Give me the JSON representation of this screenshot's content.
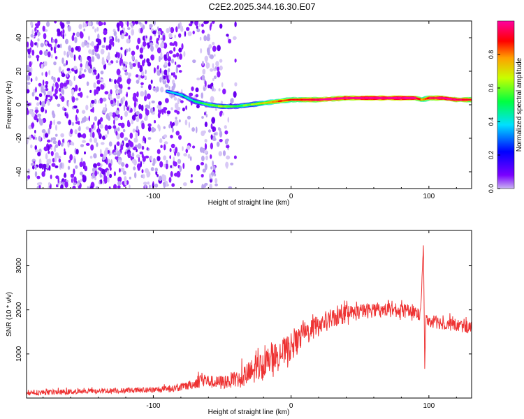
{
  "title": "C2E2.2025.344.16.30.E07",
  "colors": {
    "snr_line": "#ee3333",
    "background": "#ffffff",
    "axis": "#000000"
  },
  "chart_data": [
    {
      "type": "heatmap",
      "name": "spectrogram",
      "xlabel": "Height of straight line (km)",
      "ylabel": "Frequency (Hz)",
      "xlim": [
        -192,
        131
      ],
      "ylim": [
        -50,
        50
      ],
      "xticks": [
        -100,
        0,
        100
      ],
      "xtick_labels": [
        "-100",
        "0",
        "100"
      ],
      "yticks": [
        -40,
        -20,
        0,
        20,
        40
      ],
      "ytick_labels": [
        "-40",
        "-20",
        "0",
        "20",
        "40"
      ],
      "colorbar": {
        "label": "Normalized spectral amplitude",
        "range": [
          0,
          1
        ],
        "ticks": [
          0.0,
          0.2,
          0.4,
          0.6,
          0.8
        ],
        "tick_labels": [
          "0.0",
          "0.2",
          "0.4",
          "0.6",
          "0.8"
        ],
        "colormap": "rainbow (violet → blue → cyan → green → yellow → red → magenta)"
      },
      "features": {
        "noise_region_x": [
          -192,
          -40
        ],
        "noise_band_x": [
          -65,
          -55
        ],
        "signal_track": {
          "x": [
            -90,
            -80,
            -70,
            -60,
            -50,
            -40,
            -30,
            -20,
            -10,
            0,
            10,
            20,
            40,
            60,
            80,
            90,
            95,
            100,
            110,
            120,
            131
          ],
          "frequency": [
            8,
            6,
            2,
            0,
            -1,
            -1,
            0,
            1,
            2,
            3,
            3,
            3,
            4,
            4,
            4,
            4,
            3,
            4,
            4,
            3,
            3
          ],
          "amplitude": [
            0.25,
            0.3,
            0.35,
            0.45,
            0.5,
            0.4,
            0.5,
            0.6,
            0.7,
            0.75,
            0.8,
            0.85,
            0.9,
            0.95,
            0.95,
            0.9,
            0.6,
            0.85,
            0.9,
            0.85,
            0.8
          ]
        }
      }
    },
    {
      "type": "line",
      "name": "snr",
      "xlabel": "Height of straight line (km)",
      "ylabel": "SNR (10 * v/v)",
      "xlim": [
        -192,
        131
      ],
      "ylim": [
        0,
        3800
      ],
      "xticks": [
        -100,
        0,
        100
      ],
      "xtick_labels": [
        "-100",
        "0",
        "100"
      ],
      "yticks": [
        1000,
        2000,
        3000
      ],
      "ytick_labels": [
        "1000",
        "2000",
        "3000"
      ],
      "series": [
        {
          "name": "SNR",
          "x": [
            -192,
            -180,
            -160,
            -140,
            -120,
            -100,
            -90,
            -80,
            -70,
            -65,
            -60,
            -55,
            -50,
            -40,
            -30,
            -20,
            -10,
            0,
            10,
            20,
            30,
            40,
            50,
            60,
            70,
            80,
            90,
            94,
            96,
            97,
            98,
            100,
            110,
            120,
            131
          ],
          "values": [
            120,
            130,
            140,
            160,
            170,
            180,
            200,
            240,
            320,
            450,
            380,
            350,
            360,
            420,
            550,
            750,
            950,
            1150,
            1450,
            1650,
            1800,
            1900,
            1950,
            2000,
            2000,
            1980,
            1950,
            1900,
            3500,
            700,
            1850,
            1750,
            1700,
            1650,
            1600
          ],
          "noise_amplitude": [
            60,
            60,
            60,
            60,
            60,
            70,
            80,
            90,
            110,
            200,
            150,
            140,
            160,
            200,
            300,
            350,
            350,
            320,
            280,
            260,
            230,
            200,
            180,
            170,
            160,
            160,
            160,
            160,
            0,
            0,
            150,
            150,
            150,
            150,
            150
          ]
        }
      ]
    }
  ]
}
